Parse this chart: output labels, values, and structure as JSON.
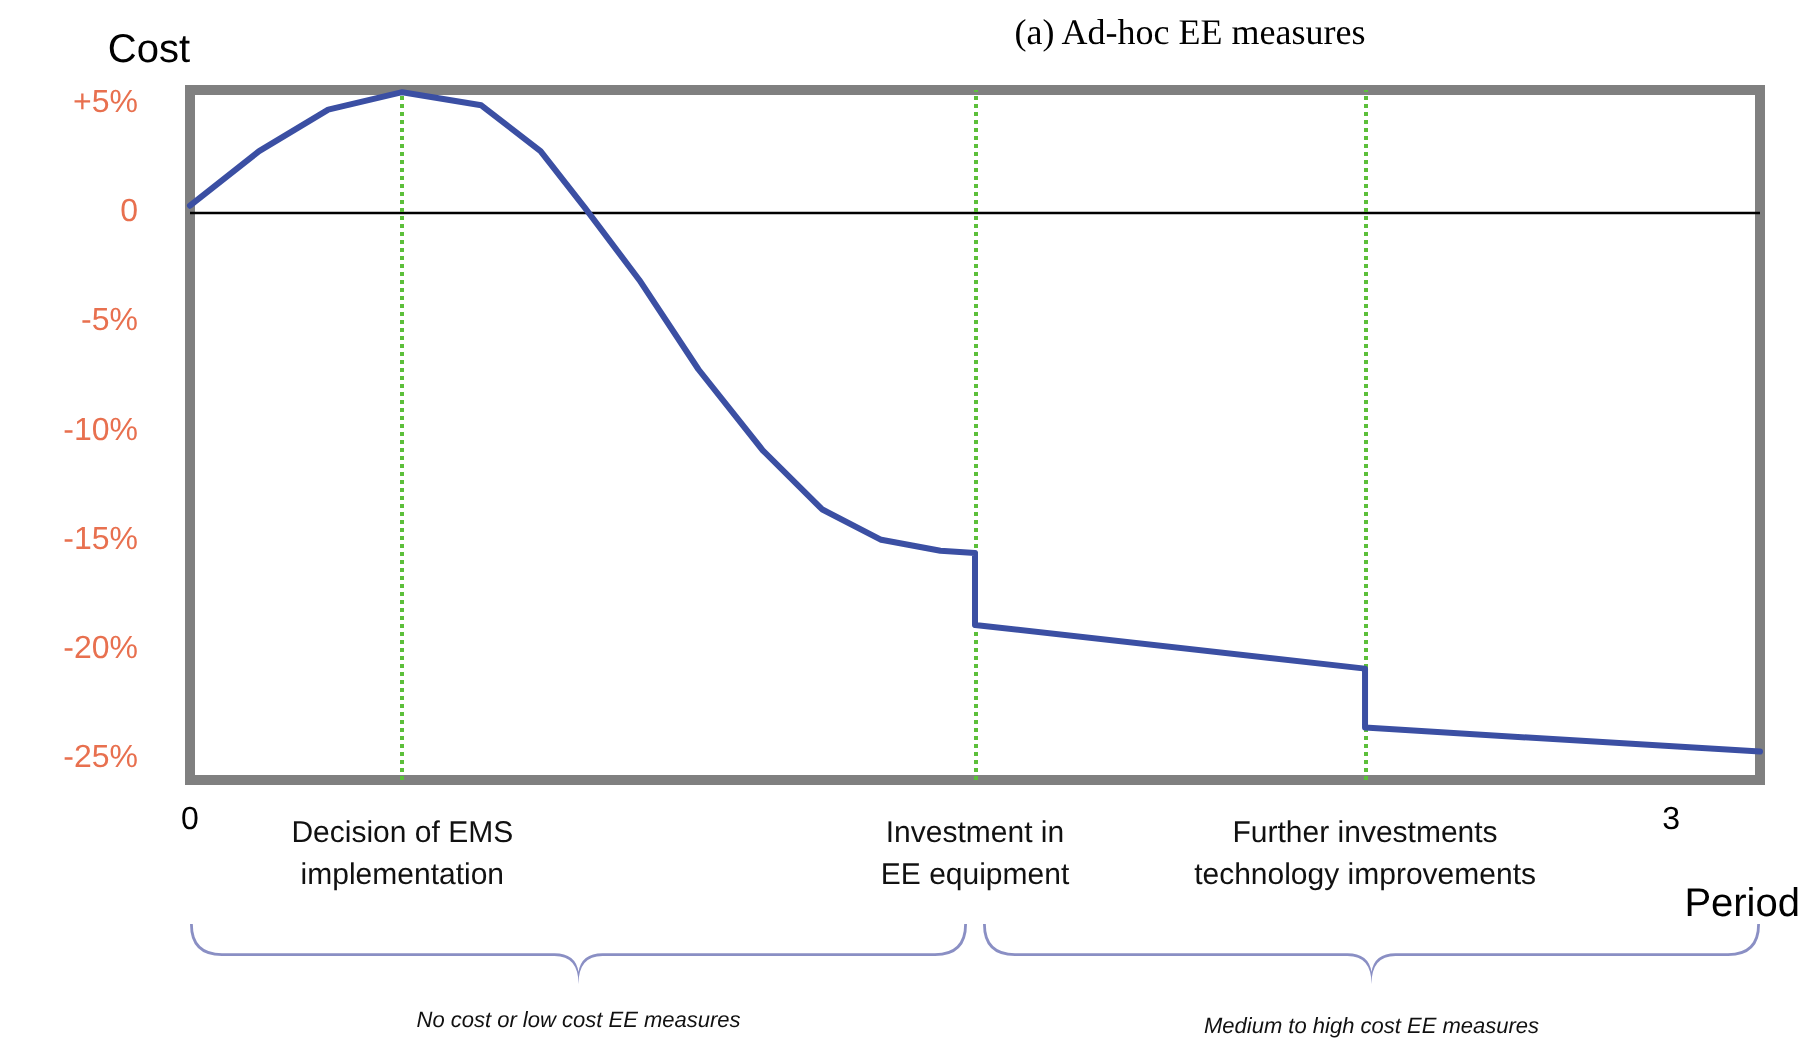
{
  "chart_data": {
    "type": "line",
    "title": "(a) Ad-hoc EE measures",
    "xlabel": "Period",
    "ylabel": "Cost",
    "x": [
      0,
      0.14,
      0.28,
      0.43,
      0.59,
      0.71,
      0.8,
      0.91,
      1.03,
      1.16,
      1.28,
      1.4,
      1.52,
      1.59,
      1.59,
      2.38,
      2.38,
      3.18
    ],
    "series": [
      {
        "color": "#3b4fa3",
        "values": [
          0.3,
          2.8,
          4.7,
          5.5,
          4.9,
          2.8,
          0.2,
          -3.1,
          -7.2,
          -10.9,
          -13.6,
          -15.0,
          -15.5,
          -15.6,
          -18.9,
          -20.9,
          -23.6,
          -24.7
        ]
      }
    ],
    "xlim": [
      0,
      3.18
    ],
    "xticks": [
      0,
      3
    ],
    "ylim": [
      -26,
      5.6
    ],
    "yticks": [
      {
        "value": 5,
        "label": "+5%"
      },
      {
        "value": 0,
        "label": "0"
      },
      {
        "value": -5,
        "label": "-5%"
      },
      {
        "value": -10,
        "label": "-10%"
      },
      {
        "value": -15,
        "label": "-15%"
      },
      {
        "value": -20,
        "label": "-20%"
      },
      {
        "value": -25,
        "label": "-25%"
      }
    ],
    "ref_lines": [
      {
        "axis": "y",
        "value": 0,
        "color": "#000000",
        "line_style": "solid"
      },
      {
        "axis": "x",
        "value": 0.43,
        "label": "Decision of EMS\nimplementation",
        "color": "#5cbf3a",
        "line_style": "dotted"
      },
      {
        "axis": "x",
        "value": 1.59,
        "label": "Investment in\nEE equipment",
        "color": "#5cbf3a",
        "line_style": "dotted"
      },
      {
        "axis": "x",
        "value": 2.38,
        "label": "Further investments\ntechnology improvements",
        "color": "#5cbf3a",
        "line_style": "dotted"
      }
    ],
    "annotations": [
      "No cost or low cost EE measures",
      "Medium to high cost EE measures"
    ],
    "grid": false,
    "marker": "none",
    "line_style": "solid"
  }
}
